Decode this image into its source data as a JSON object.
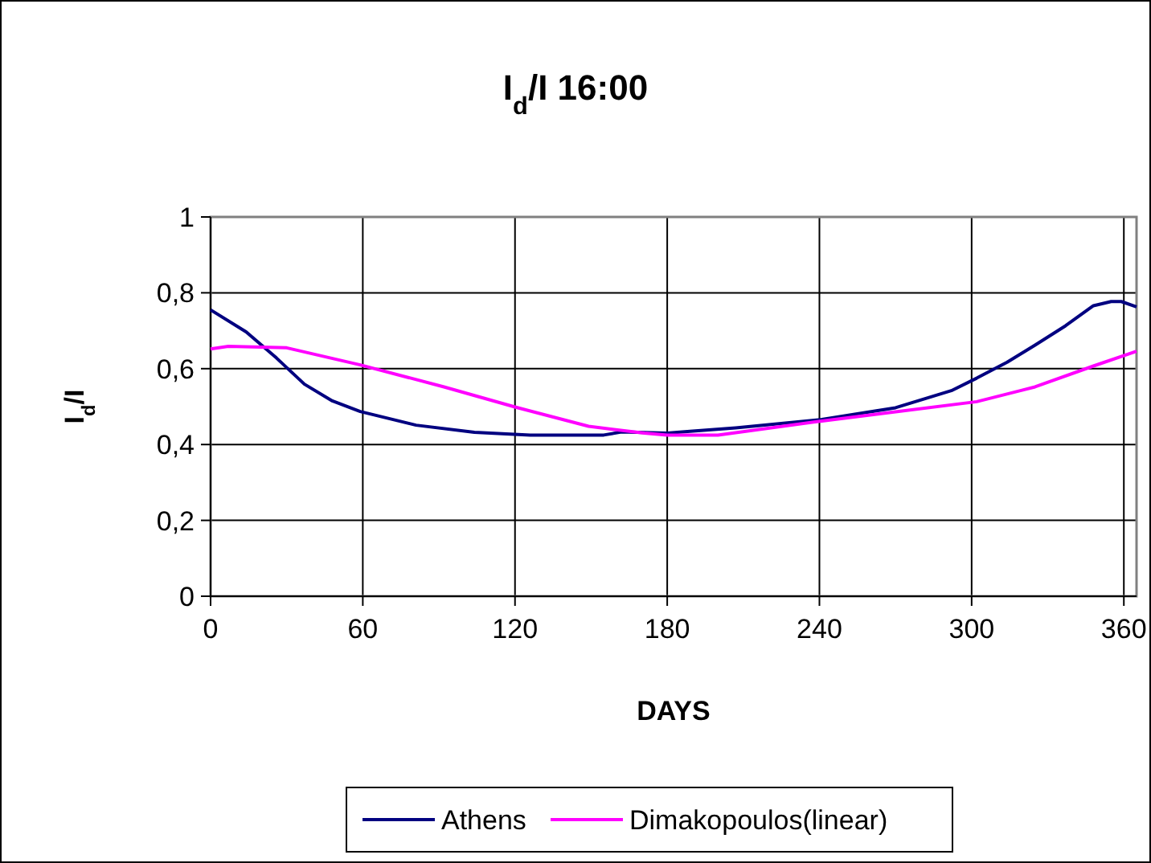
{
  "chart_data": {
    "type": "line",
    "title": "I$_{d}$/I 16:00",
    "xlabel": "DAYS",
    "ylabel": "I$_{d}$/I",
    "xlim": [
      0,
      365
    ],
    "xticks": [
      0,
      60,
      120,
      180,
      240,
      300,
      360
    ],
    "ylim": [
      0,
      1
    ],
    "yticks": [
      0,
      {
        "value": 0.2,
        "label": "0,2"
      },
      {
        "value": 0.4,
        "label": "0,4"
      },
      {
        "value": 0.6,
        "label": "0,6"
      },
      {
        "value": 0.8,
        "label": "0,8"
      },
      1
    ],
    "grid": true,
    "legend": "bottom",
    "line_style": "solid",
    "marker": "none",
    "series": [
      {
        "name": "Athens",
        "color": "#000080",
        "x": [
          0,
          14,
          26,
          37,
          48,
          59,
          81,
          104,
          126,
          155,
          162,
          180,
          189,
          207,
          241,
          270,
          292,
          302,
          314,
          325,
          337,
          348,
          355,
          359,
          365
        ],
        "values": [
          0.755,
          0.697,
          0.628,
          0.559,
          0.515,
          0.487,
          0.451,
          0.432,
          0.425,
          0.425,
          0.433,
          0.43,
          0.435,
          0.444,
          0.466,
          0.497,
          0.542,
          0.575,
          0.617,
          0.662,
          0.713,
          0.766,
          0.777,
          0.777,
          0.763
        ]
      },
      {
        "name": "Dimakopoulos(linear)",
        "color": "#ff00ff",
        "x": [
          0,
          7,
          30,
          59,
          92,
          120,
          149,
          171,
          180,
          200,
          241,
          302,
          325,
          348,
          365
        ],
        "values": [
          0.652,
          0.659,
          0.655,
          0.61,
          0.552,
          0.499,
          0.448,
          0.43,
          0.425,
          0.425,
          0.462,
          0.513,
          0.552,
          0.607,
          0.646
        ]
      }
    ]
  }
}
